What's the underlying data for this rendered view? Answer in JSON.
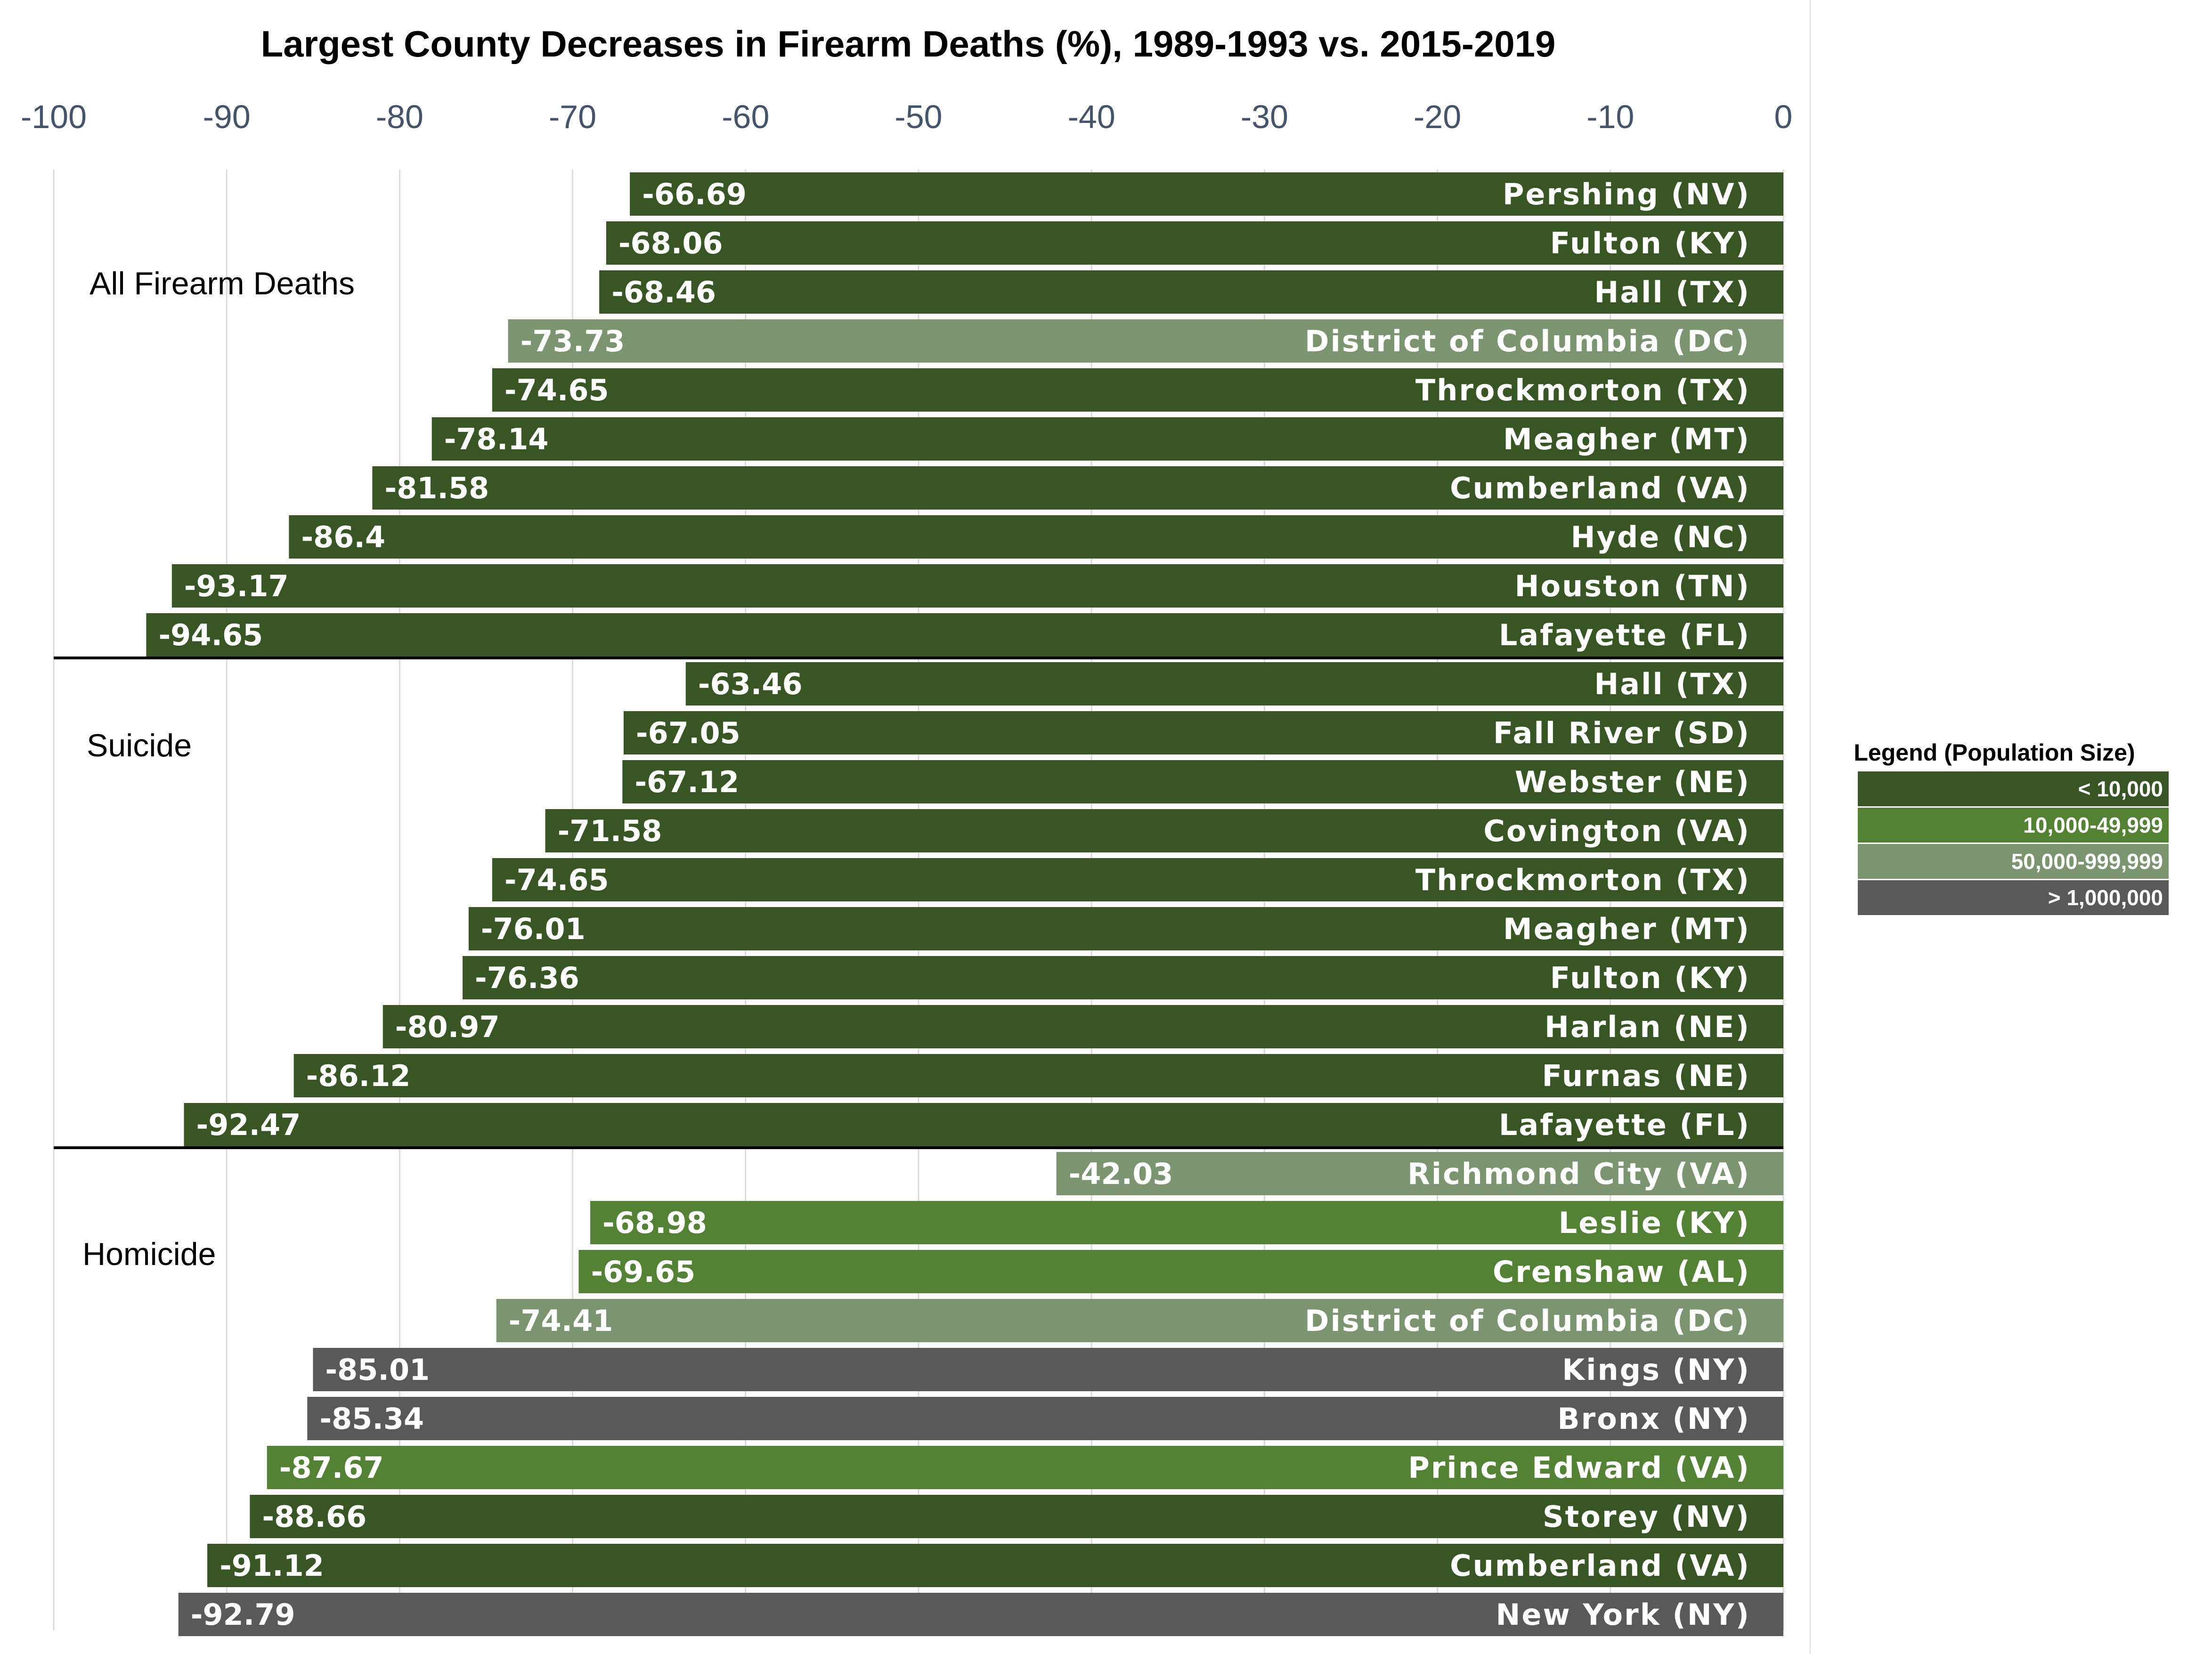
{
  "chart_data": {
    "type": "bar",
    "orientation": "horizontal",
    "title": "Largest County Decreases in Firearm Deaths (%), 1989-1993 vs. 2015-2019",
    "xlabel": "",
    "ylabel": "",
    "xlim": [
      -100,
      0
    ],
    "xticks": [
      "-100",
      "-90",
      "-80",
      "-70",
      "-60",
      "-50",
      "-40",
      "-30",
      "-20",
      "-10",
      "0"
    ],
    "grid": true,
    "colors": {
      "lt10k": "#375623",
      "10k_50k": "#548235",
      "50k_1m": "#7a9570",
      "gt1m": "#595959",
      "axis": "#d9d9d9",
      "separator": "#000000"
    },
    "groups": [
      {
        "name": "All Firearm Deaths",
        "bars": [
          {
            "label": "Pershing (NV)",
            "value": -66.69,
            "value_text": "-66.69",
            "pop": "lt10k"
          },
          {
            "label": "Fulton (KY)",
            "value": -68.06,
            "value_text": "-68.06",
            "pop": "lt10k"
          },
          {
            "label": "Hall (TX)",
            "value": -68.46,
            "value_text": "-68.46",
            "pop": "lt10k"
          },
          {
            "label": "District of Columbia (DC)",
            "value": -73.73,
            "value_text": "-73.73",
            "pop": "50k_1m"
          },
          {
            "label": "Throckmorton (TX)",
            "value": -74.65,
            "value_text": "-74.65",
            "pop": "lt10k"
          },
          {
            "label": "Meagher (MT)",
            "value": -78.14,
            "value_text": "-78.14",
            "pop": "lt10k"
          },
          {
            "label": "Cumberland (VA)",
            "value": -81.58,
            "value_text": "-81.58",
            "pop": "lt10k"
          },
          {
            "label": "Hyde (NC)",
            "value": -86.4,
            "value_text": "-86.4",
            "pop": "lt10k"
          },
          {
            "label": "Houston (TN)",
            "value": -93.17,
            "value_text": "-93.17",
            "pop": "lt10k"
          },
          {
            "label": "Lafayette (FL)",
            "value": -94.65,
            "value_text": "-94.65",
            "pop": "lt10k"
          }
        ]
      },
      {
        "name": "Suicide",
        "bars": [
          {
            "label": "Hall (TX)",
            "value": -63.46,
            "value_text": "-63.46",
            "pop": "lt10k"
          },
          {
            "label": "Fall River (SD)",
            "value": -67.05,
            "value_text": "-67.05",
            "pop": "lt10k"
          },
          {
            "label": "Webster (NE)",
            "value": -67.12,
            "value_text": "-67.12",
            "pop": "lt10k"
          },
          {
            "label": "Covington (VA)",
            "value": -71.58,
            "value_text": "-71.58",
            "pop": "lt10k"
          },
          {
            "label": "Throckmorton (TX)",
            "value": -74.65,
            "value_text": "-74.65",
            "pop": "lt10k"
          },
          {
            "label": "Meagher (MT)",
            "value": -76.01,
            "value_text": "-76.01",
            "pop": "lt10k"
          },
          {
            "label": "Fulton (KY)",
            "value": -76.36,
            "value_text": "-76.36",
            "pop": "lt10k"
          },
          {
            "label": "Harlan (NE)",
            "value": -80.97,
            "value_text": "-80.97",
            "pop": "lt10k"
          },
          {
            "label": "Furnas (NE)",
            "value": -86.12,
            "value_text": "-86.12",
            "pop": "lt10k"
          },
          {
            "label": "Lafayette (FL)",
            "value": -92.47,
            "value_text": "-92.47",
            "pop": "lt10k"
          }
        ]
      },
      {
        "name": "Homicide",
        "bars": [
          {
            "label": "Richmond City (VA)",
            "value": -42.03,
            "value_text": "-42.03",
            "pop": "50k_1m"
          },
          {
            "label": "Leslie (KY)",
            "value": -68.98,
            "value_text": "-68.98",
            "pop": "10k_50k"
          },
          {
            "label": "Crenshaw (AL)",
            "value": -69.65,
            "value_text": "-69.65",
            "pop": "10k_50k"
          },
          {
            "label": "District of Columbia (DC)",
            "value": -74.41,
            "value_text": "-74.41",
            "pop": "50k_1m"
          },
          {
            "label": "Kings (NY)",
            "value": -85.01,
            "value_text": "-85.01",
            "pop": "gt1m"
          },
          {
            "label": "Bronx (NY)",
            "value": -85.34,
            "value_text": "-85.34",
            "pop": "gt1m"
          },
          {
            "label": "Prince Edward (VA)",
            "value": -87.67,
            "value_text": "-87.67",
            "pop": "10k_50k"
          },
          {
            "label": "Storey (NV)",
            "value": -88.66,
            "value_text": "-88.66",
            "pop": "lt10k"
          },
          {
            "label": "Cumberland (VA)",
            "value": -91.12,
            "value_text": "-91.12",
            "pop": "lt10k"
          },
          {
            "label": "New York (NY)",
            "value": -92.79,
            "value_text": "-92.79",
            "pop": "gt1m"
          }
        ]
      }
    ],
    "legend": {
      "title": "Legend (Population Size)",
      "placement": "right",
      "entries": [
        {
          "key": "lt10k",
          "label": "< 10,000"
        },
        {
          "key": "10k_50k",
          "label": "10,000-49,999"
        },
        {
          "key": "50k_1m",
          "label": "50,000-999,999"
        },
        {
          "key": "gt1m",
          "label": "> 1,000,000"
        }
      ]
    }
  }
}
